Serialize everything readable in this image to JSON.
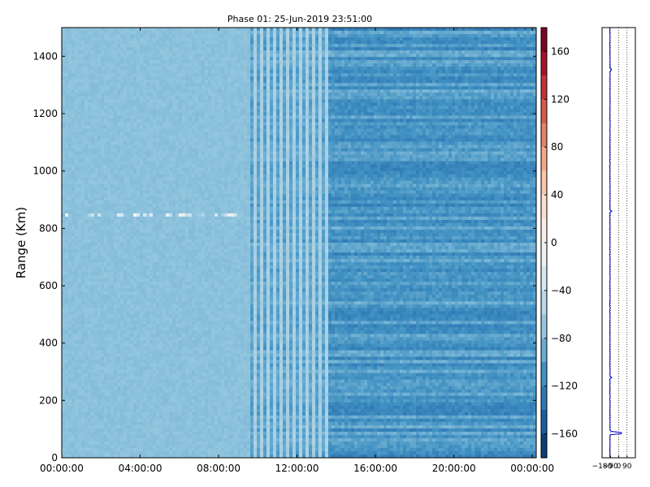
{
  "chart_data": [
    {
      "type": "heatmap",
      "title": "Phase 01: 25-Jun-2019 23:51:00",
      "xlabel": "",
      "ylabel": "Range (Km)",
      "x_tick_labels": [
        "00:00:00",
        "04:00:00",
        "08:00:00",
        "12:00:00",
        "16:00:00",
        "20:00:00",
        "00:00:00"
      ],
      "y_ticks": [
        0,
        200,
        400,
        600,
        800,
        1000,
        1200,
        1400
      ],
      "ylim": [
        0,
        1500
      ],
      "colormap": "RdBu_r",
      "colorbar": {
        "range": [
          -180,
          180
        ],
        "ticks": [
          160,
          120,
          80,
          40,
          0,
          -40,
          -80,
          -120,
          -160
        ],
        "tick_labels": [
          "160",
          "120",
          "80",
          "40",
          "0",
          "−40",
          "−80",
          "−120",
          "−160"
        ]
      },
      "regions": [
        {
          "from": "00:00:00",
          "to": "09:30:00",
          "approx_phase_deg": -75,
          "pattern": "smooth"
        },
        {
          "from": "09:30:00",
          "to": "13:30:00",
          "approx_phase_deg": -90,
          "pattern": "alternating vertical stripes"
        },
        {
          "from": "13:30:00",
          "to": "00:00:00",
          "approx_phase_deg": -105,
          "pattern": "noisy"
        }
      ],
      "highlighted_range_band_km": [
        840,
        855
      ]
    },
    {
      "type": "line",
      "title": "",
      "x_tick_labels": [
        "−180",
        "−90",
        "0",
        "90"
      ],
      "x_ticks": [
        -180,
        -90,
        0,
        90
      ],
      "xlim": [
        -180,
        180
      ],
      "ylim": [
        0,
        1500
      ],
      "grid": true,
      "series_color": "#0000cc",
      "baseline_phase_deg": -95,
      "spikes": [
        {
          "range_km": 1355,
          "phase_deg": -80
        },
        {
          "range_km": 860,
          "phase_deg": -75
        },
        {
          "range_km": 280,
          "phase_deg": -75
        },
        {
          "range_km": 90,
          "phase_deg": -80
        },
        {
          "range_km": 85,
          "phase_deg": 30
        }
      ]
    }
  ]
}
